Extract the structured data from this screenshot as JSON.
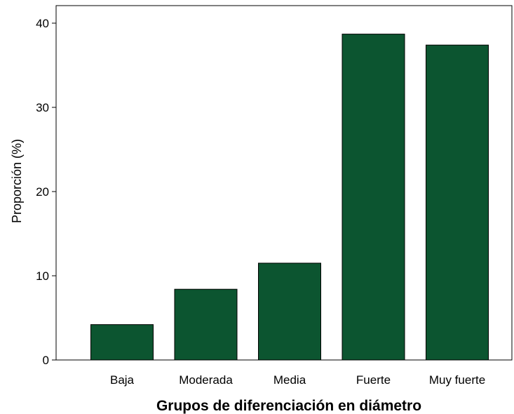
{
  "chart_data": {
    "type": "bar",
    "categories": [
      "Baja",
      "Moderada",
      "Media",
      "Fuerte",
      "Muy fuerte"
    ],
    "values": [
      4.2,
      8.4,
      11.5,
      38.7,
      37.4
    ],
    "xlabel": "Grupos de diferenciación en diámetro",
    "ylabel": "Proporción (%)",
    "ylim": [
      0,
      42
    ],
    "yticks": [
      0,
      10,
      20,
      30,
      40
    ],
    "grid": false,
    "colors": {
      "bar_fill": "#0c5530",
      "bar_stroke": "#000000",
      "axis": "#000000",
      "background": "#ffffff"
    }
  }
}
